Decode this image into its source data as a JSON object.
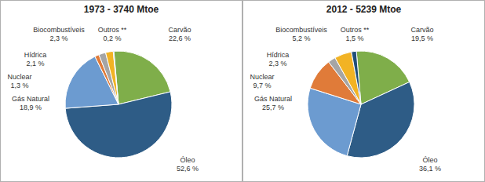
{
  "chart_data": [
    {
      "type": "pie",
      "title": "1973 - 3740 Mtoe",
      "categories": [
        "Carvão",
        "Óleo",
        "Gás Natural",
        "Nuclear",
        "Hídrica",
        "Biocombustíveis",
        "Outros **"
      ],
      "values": [
        22.6,
        52.6,
        18.9,
        1.3,
        2.1,
        2.3,
        0.2
      ],
      "value_labels": [
        "22,6 %",
        "52,6 %",
        "18,9 %",
        "1,3 %",
        "2,1 %",
        "2,3 %",
        "0,2 %"
      ],
      "colors": [
        "#7fae4a",
        "#2e5c86",
        "#6c9bd0",
        "#e07b39",
        "#a5a5a5",
        "#f2b324",
        "#1f4e79"
      ],
      "data_labels": true
    },
    {
      "type": "pie",
      "title": "2012 - 5239 Mtoe",
      "categories": [
        "Carvão",
        "Óleo",
        "Gás Natural",
        "Nuclear",
        "Hídrica",
        "Biocombustíveis",
        "Outros **"
      ],
      "values": [
        19.5,
        36.1,
        25.7,
        9.7,
        2.3,
        5.2,
        1.5
      ],
      "value_labels": [
        "19,5 %",
        "36,1 %",
        "25,7 %",
        "9,7 %",
        "2,3 %",
        "5,2 %",
        "1,5 %"
      ],
      "colors": [
        "#7fae4a",
        "#2e5c86",
        "#6c9bd0",
        "#e07b39",
        "#a5a5a5",
        "#f2b324",
        "#1f4e79"
      ],
      "data_labels": true
    }
  ]
}
